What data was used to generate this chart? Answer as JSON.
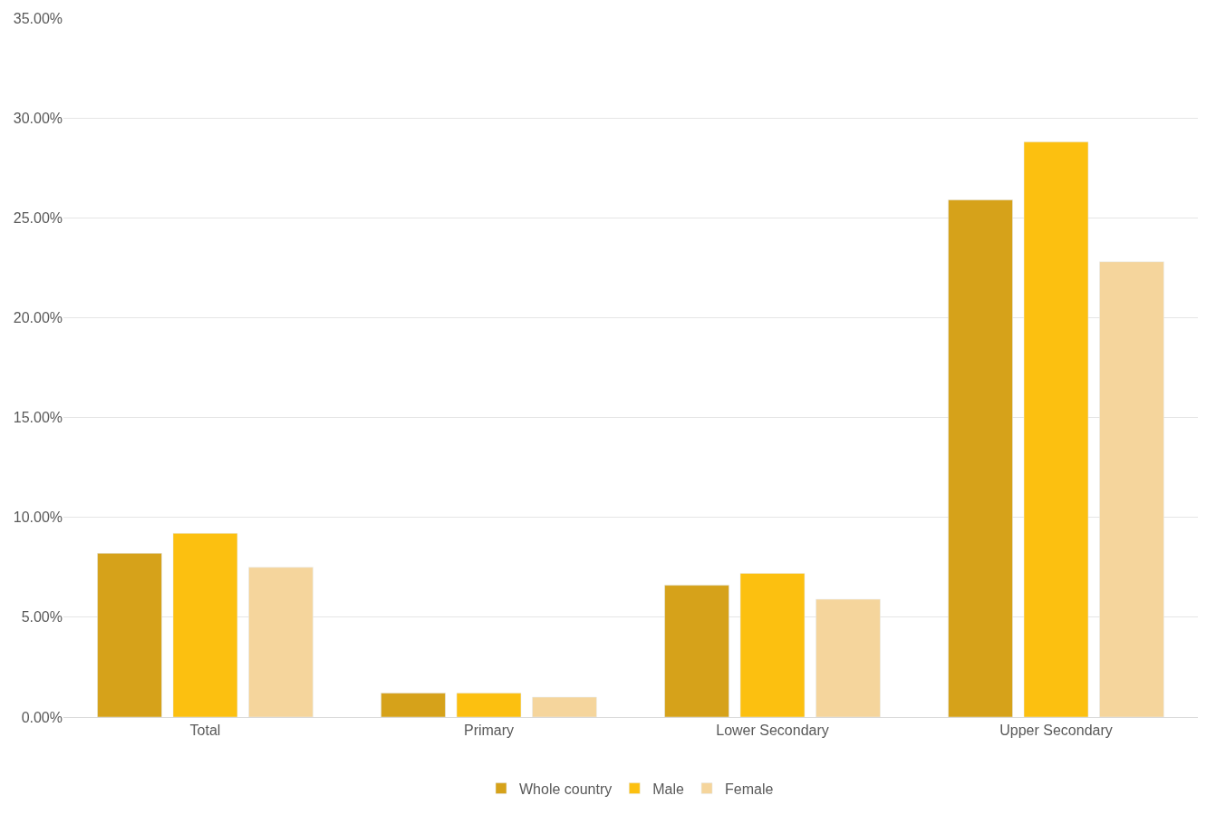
{
  "chart_data": {
    "type": "bar",
    "categories": [
      "Total",
      "Primary",
      "Lower Secondary",
      "Upper Secondary"
    ],
    "series": [
      {
        "name": "Whole country",
        "color": "#d6a21a",
        "values": [
          8.2,
          1.2,
          6.6,
          25.9
        ]
      },
      {
        "name": "Male",
        "color": "#fcc010",
        "values": [
          9.2,
          1.2,
          7.2,
          28.8
        ]
      },
      {
        "name": "Female",
        "color": "#f5d59c",
        "values": [
          7.5,
          1.0,
          5.9,
          22.8
        ]
      }
    ],
    "ylim": [
      0,
      35
    ],
    "yticks": [
      {
        "value": 0,
        "label": "0.00%"
      },
      {
        "value": 5,
        "label": "5.00%"
      },
      {
        "value": 10,
        "label": "10.00%"
      },
      {
        "value": 15,
        "label": "15.00%"
      },
      {
        "value": 20,
        "label": "20.00%"
      },
      {
        "value": 25,
        "label": "25.00%"
      },
      {
        "value": 30,
        "label": "30.00%"
      },
      {
        "value": 35,
        "label": "35.00%"
      }
    ],
    "grid": "y",
    "legend": "bottom"
  }
}
